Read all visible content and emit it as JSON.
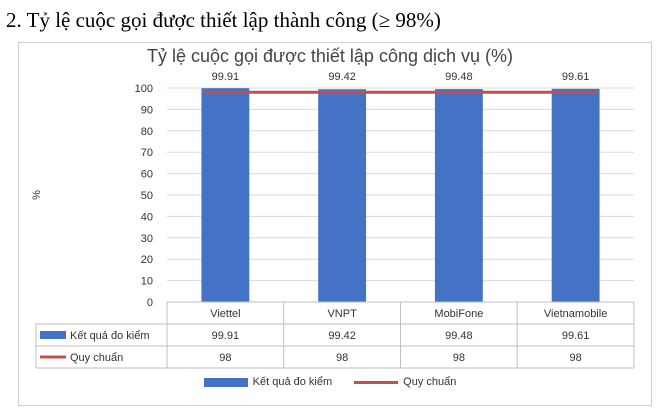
{
  "heading": "2. Tỷ lệ cuộc gọi được thiết lập thành công (≥ 98%)",
  "colors": {
    "bar": "#4472C4",
    "line": "#C0504D",
    "grid": "#d9d9d9",
    "text": "#333333"
  },
  "chart_data": {
    "type": "bar",
    "title": "Tỷ lệ cuộc gọi được thiết lập công dịch vụ (%)",
    "ylabel": "%",
    "xlabel": "",
    "ylim": [
      0,
      100
    ],
    "yticks": [
      0,
      10,
      20,
      30,
      40,
      50,
      60,
      70,
      80,
      90,
      100
    ],
    "grid": true,
    "legend_position": "bottom",
    "categories": [
      "Viettel",
      "VNPT",
      "MobiFone",
      "Vietnamobile"
    ],
    "series": [
      {
        "name": "Kết quả đo kiểm",
        "type": "bar",
        "values": [
          99.91,
          99.42,
          99.48,
          99.61
        ]
      },
      {
        "name": "Quy chuẩn",
        "type": "line",
        "values": [
          98,
          98,
          98,
          98
        ]
      }
    ],
    "data_labels": [
      "99.91",
      "99.42",
      "99.48",
      "99.61"
    ],
    "data_table": [
      {
        "name": "Kết quả đo kiểm",
        "cells": [
          "99.91",
          "99.42",
          "99.48",
          "99.61"
        ]
      },
      {
        "name": "Quy chuẩn",
        "cells": [
          "98",
          "98",
          "98",
          "98"
        ]
      }
    ]
  }
}
